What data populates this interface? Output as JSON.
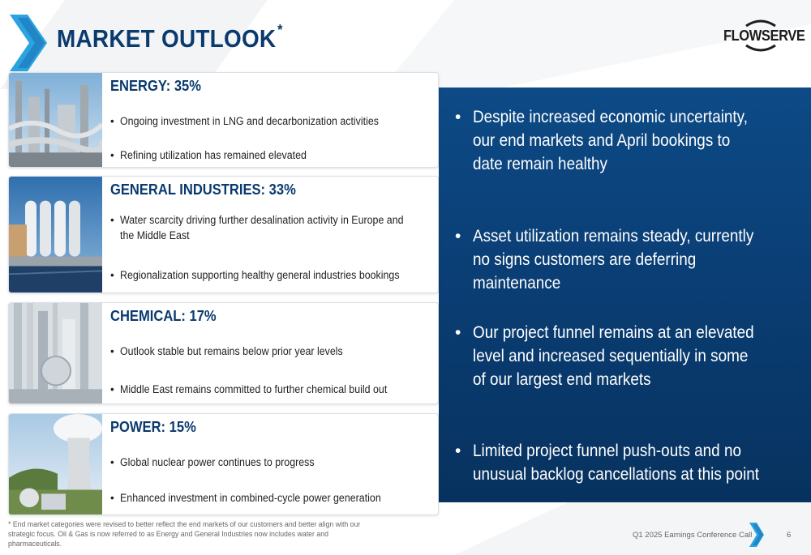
{
  "slide": {
    "title": "MARKET OUTLOOK",
    "title_marker": "*",
    "logo_text": "FLOWSERVE"
  },
  "markets": [
    {
      "title": "ENERGY: 35%",
      "share_percent": 35,
      "bullets": [
        "Ongoing investment in LNG and decarbonization activities",
        "Refining utilization has remained elevated"
      ]
    },
    {
      "title": "GENERAL INDUSTRIES: 33%",
      "share_percent": 33,
      "bullets": [
        "Water scarcity driving further desalination activity in Europe and the Middle East",
        "Regionalization supporting healthy general industries bookings"
      ]
    },
    {
      "title": "CHEMICAL: 17%",
      "share_percent": 17,
      "bullets": [
        "Outlook stable but remains below prior year levels",
        "Middle East remains committed to further chemical build out"
      ]
    },
    {
      "title": "POWER: 15%",
      "share_percent": 15,
      "bullets": [
        "Global nuclear power continues to progress",
        "Enhanced investment in combined-cycle power generation"
      ]
    }
  ],
  "outlook_points": [
    "Despite increased economic uncertainty, our end markets and April bookings to date remain healthy",
    "Asset utilization remains steady, currently no signs customers are deferring maintenance",
    "Our project funnel remains at an elevated level and increased sequentially in some of our largest end markets",
    "Limited project funnel push-outs and no unusual backlog cancellations at this point"
  ],
  "footer": {
    "footnote": "* End market categories were revised to better reflect the end markets of our customers and better align with our strategic focus. Oil & Gas is now referred to as Energy and General Industries now includes water and pharmaceuticals.",
    "event": "Q1 2025 Earnings Conference Call",
    "page_number": "6"
  },
  "colors": {
    "brand_navy": "#0a3a6e",
    "accent_cyan": "#2aa3e0",
    "panel_blue": "#0a3d73"
  },
  "icons": [
    "chevron-right-icon",
    "flowserve-logo-icon"
  ]
}
